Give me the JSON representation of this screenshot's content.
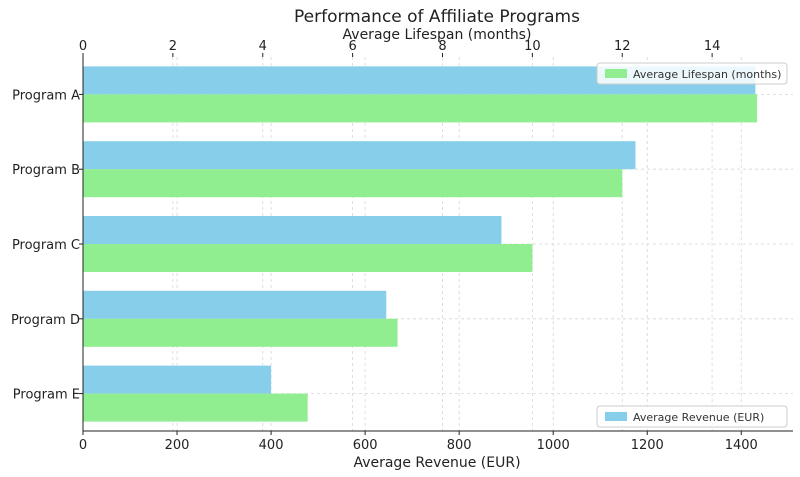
{
  "chart_data": {
    "type": "bar",
    "orientation": "horizontal",
    "title": "Performance of Affiliate Programs",
    "categories": [
      "Program A",
      "Program B",
      "Program C",
      "Program D",
      "Program E"
    ],
    "series": [
      {
        "name": "Average Revenue (EUR)",
        "axis": "bottom",
        "color": "#87CEEB",
        "values": [
          1430,
          1175,
          890,
          645,
          400
        ]
      },
      {
        "name": "Average Lifespan (months)",
        "axis": "top",
        "color": "#90EE90",
        "values": [
          15,
          12,
          10,
          7,
          5
        ]
      }
    ],
    "xlabel": "Average Revenue (EUR)",
    "xlim": [
      0,
      1510
    ],
    "x_ticks": [
      "0",
      "200",
      "400",
      "600",
      "800",
      "1000",
      "1200",
      "1400"
    ],
    "x2label": "Average Lifespan (months)",
    "x2lim": [
      0,
      15.8
    ],
    "x2_ticks": [
      "0",
      "2",
      "4",
      "6",
      "8",
      "10",
      "12",
      "14"
    ],
    "grid": true,
    "legend_top": "top-right",
    "legend_bottom": "bottom-right"
  }
}
